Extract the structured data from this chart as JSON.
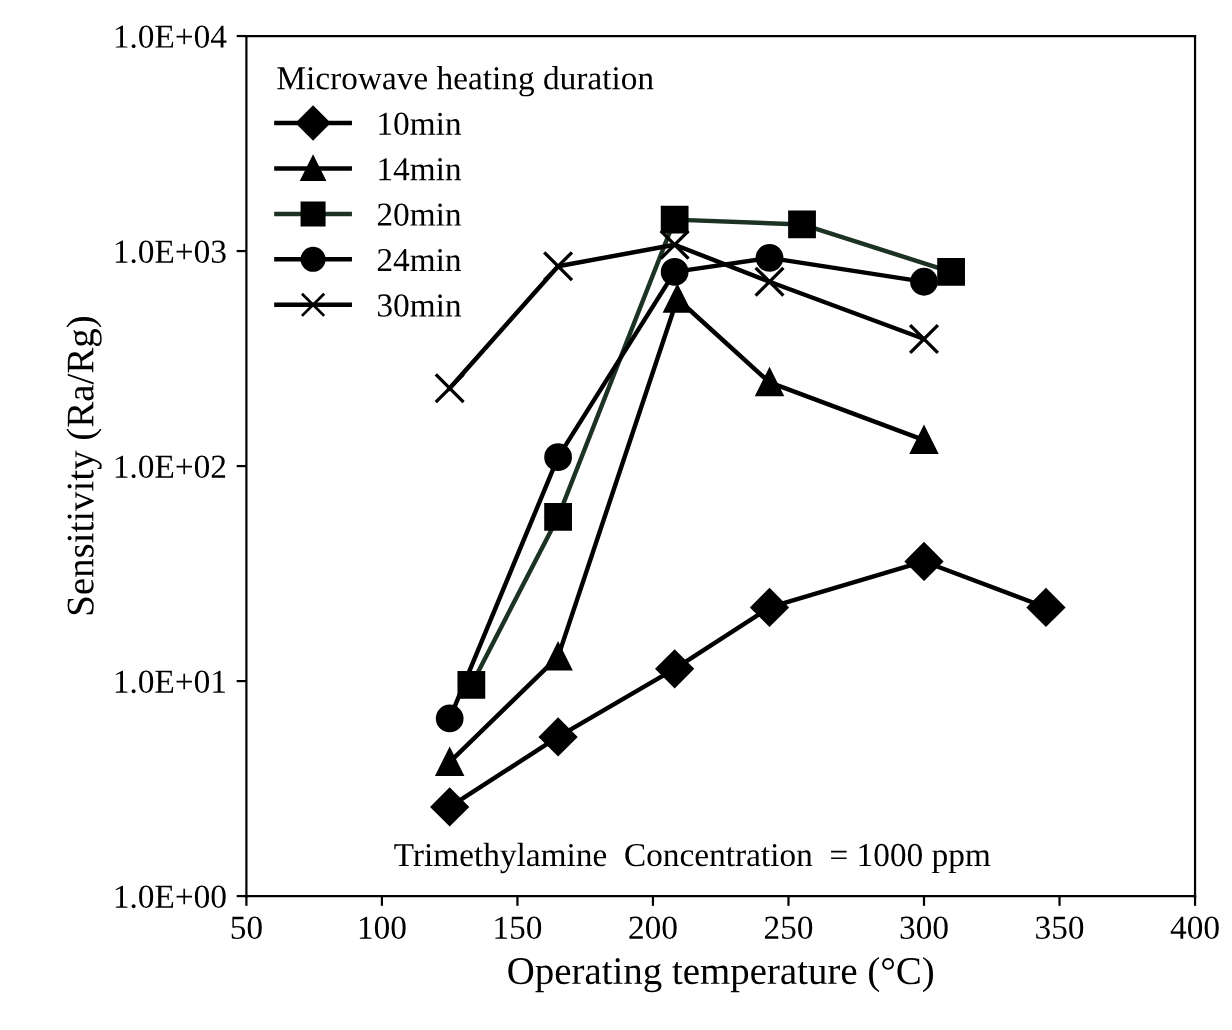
{
  "chart_data": {
    "type": "line",
    "xlabel": "Operating temperature (°C)",
    "ylabel": "Sensitivity (Ra/Rg)",
    "legend_title": "Microwave heating duration",
    "legend": "top left",
    "log": "y",
    "grid": false,
    "line_style": "solid",
    "xlim": [
      50,
      400
    ],
    "xticks": [
      50,
      100,
      150,
      200,
      250,
      300,
      350,
      400
    ],
    "ylim": [
      1,
      10000
    ],
    "yticks": [
      {
        "value": 1,
        "label": "1.0E+00"
      },
      {
        "value": 10,
        "label": "1.0E+01"
      },
      {
        "value": 100,
        "label": "1.0E+02"
      },
      {
        "value": 1000,
        "label": "1.0E+03"
      },
      {
        "value": 10000,
        "label": "1.0E+04"
      }
    ],
    "annotations": [
      "Trimethylamine  Concentration  = 1000 ppm"
    ],
    "series": [
      {
        "name": "10min",
        "color": "#000000",
        "marker": "diamond",
        "x": [
          125,
          165,
          208,
          243,
          300,
          345
        ],
        "values": [
          2.6,
          5.5,
          11.4,
          22,
          36,
          22
        ]
      },
      {
        "name": "14min",
        "color": "#000000",
        "marker": "triangle",
        "x": [
          125,
          165,
          209,
          243,
          300
        ],
        "values": [
          4.2,
          13,
          600,
          245,
          132
        ]
      },
      {
        "name": "20min",
        "color": "#1c3324",
        "marker": "square",
        "x": [
          133,
          165,
          208,
          255,
          310
        ],
        "values": [
          9.6,
          58,
          1400,
          1330,
          800
        ]
      },
      {
        "name": "24min",
        "color": "#000000",
        "marker": "circle",
        "x": [
          125,
          165,
          208,
          243,
          300
        ],
        "values": [
          6.7,
          110,
          800,
          930,
          720
        ]
      },
      {
        "name": "30min",
        "color": "#000000",
        "marker": "cross",
        "x": [
          125,
          165,
          208,
          243,
          300
        ],
        "values": [
          230,
          850,
          1070,
          720,
          390
        ]
      }
    ]
  }
}
